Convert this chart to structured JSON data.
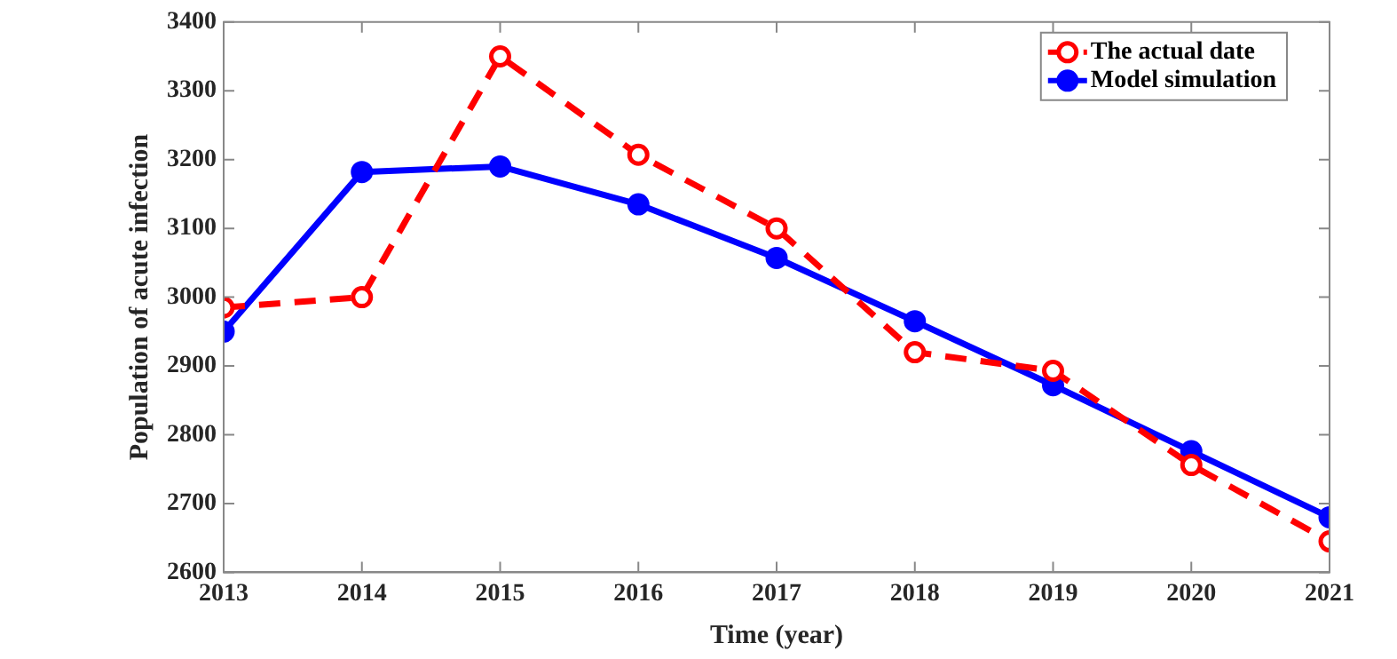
{
  "chart_data": {
    "type": "line",
    "xlabel": "Time (year)",
    "ylabel": "Population of acute infection",
    "x": [
      2013,
      2014,
      2015,
      2016,
      2017,
      2018,
      2019,
      2020,
      2021
    ],
    "xlim": [
      2013,
      2021
    ],
    "xticks": [
      2013,
      2014,
      2015,
      2016,
      2017,
      2018,
      2019,
      2020,
      2021
    ],
    "ylim": [
      2600,
      3400
    ],
    "yticks": [
      2600,
      2700,
      2800,
      2900,
      3000,
      3100,
      3200,
      3300,
      3400
    ],
    "grid": false,
    "legend": "top right",
    "series": [
      {
        "name": "The actual date",
        "color": "#ff0000",
        "marker": "circle",
        "line_style": "dashed",
        "values": [
          2985,
          3000,
          3350,
          3207,
          3100,
          2920,
          2893,
          2756,
          2645
        ]
      },
      {
        "name": "Model simulation",
        "color": "#0000ff",
        "marker": "circle",
        "line_style": "solid",
        "values": [
          2950,
          3182,
          3190,
          3135,
          3057,
          2965,
          2872,
          2776,
          2680
        ]
      }
    ]
  }
}
